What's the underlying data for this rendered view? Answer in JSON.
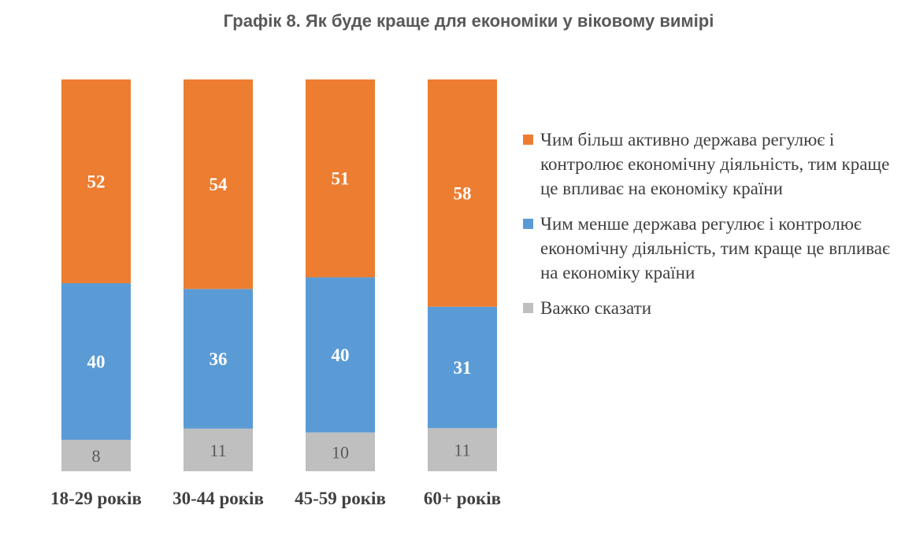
{
  "chart_data": {
    "type": "bar",
    "stacked": true,
    "percent_stacked": true,
    "title": "Графік 8. Як буде краще для економіки у віковому вимірі",
    "categories": [
      "18-29 років",
      "30-44 років",
      "45-59 років",
      "60+ років"
    ],
    "series": [
      {
        "name": "Важко сказати",
        "color": "#bfbfbf",
        "label_color": "#595959",
        "values": [
          8,
          11,
          10,
          11
        ]
      },
      {
        "name": "Чим менше держава регулює і контролює економічну діяльність, тим краще це впливає на економіку країни",
        "color": "#5b9bd5",
        "label_color": "#ffffff",
        "values": [
          40,
          36,
          40,
          31
        ]
      },
      {
        "name": "Чим більш активно держава регулює і контролює економічну діяльність, тим краще це впливає на економіку країни",
        "color": "#ed7d31",
        "label_color": "#ffffff",
        "values": [
          52,
          54,
          51,
          58
        ]
      }
    ],
    "legend_order": [
      2,
      1,
      0
    ],
    "legend_position": "right",
    "grid": false
  }
}
